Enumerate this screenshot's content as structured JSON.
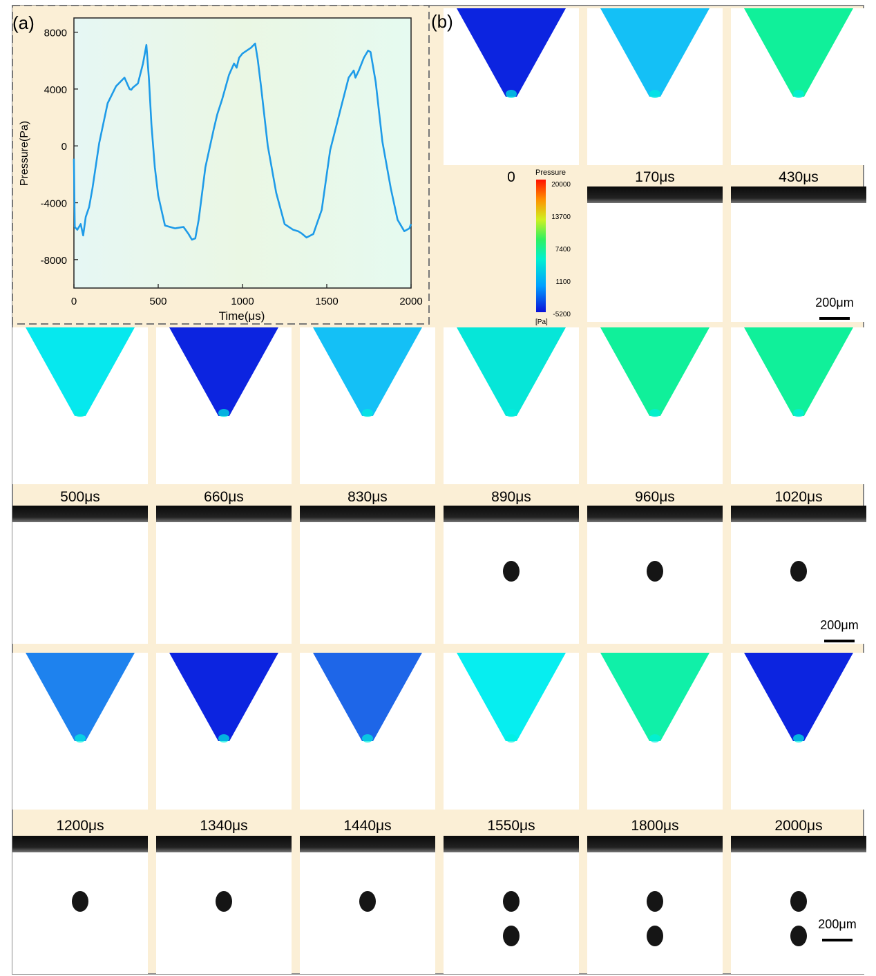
{
  "panel_a": {
    "label": "(a)",
    "chart_data": {
      "type": "line",
      "title": "",
      "xlabel": "Time(μs)",
      "ylabel": "Pressure(Pa)",
      "xlim": [
        0,
        2000
      ],
      "ylim": [
        -10000,
        9000
      ],
      "xticks": [
        0,
        500,
        1000,
        1500,
        2000
      ],
      "yticks": [
        -8000,
        -4000,
        0,
        4000,
        8000
      ],
      "grid": false,
      "legend": "none",
      "line_color": "#1e9be8",
      "series": [
        {
          "x": [
            0,
            5,
            20,
            40,
            55,
            70,
            90,
            110,
            150,
            200,
            250,
            300,
            330,
            340,
            350,
            380,
            410,
            430,
            445,
            460,
            480,
            500,
            540,
            600,
            650,
            680,
            700,
            720,
            740,
            780,
            830,
            850,
            880,
            920,
            950,
            965,
            980,
            1000,
            1050,
            1075,
            1090,
            1110,
            1150,
            1200,
            1250,
            1300,
            1330,
            1350,
            1380,
            1420,
            1470,
            1520,
            1580,
            1630,
            1660,
            1670,
            1690,
            1720,
            1745,
            1760,
            1790,
            1830,
            1880,
            1920,
            1960,
            1990,
            2000
          ],
          "y": [
            -900,
            -5700,
            -5900,
            -5500,
            -6300,
            -5000,
            -4300,
            -3000,
            200,
            3000,
            4200,
            4800,
            4000,
            3950,
            4100,
            4400,
            5800,
            7100,
            4700,
            1500,
            -1500,
            -3500,
            -5600,
            -5800,
            -5700,
            -6200,
            -6600,
            -6500,
            -5200,
            -1500,
            1200,
            2200,
            3300,
            5000,
            5800,
            5500,
            6200,
            6500,
            6900,
            7200,
            6100,
            4200,
            0,
            -3300,
            -5500,
            -5900,
            -6000,
            -6150,
            -6450,
            -6200,
            -4500,
            -300,
            2500,
            4800,
            5300,
            4800,
            5300,
            6200,
            6700,
            6600,
            4500,
            300,
            -3000,
            -5200,
            -6000,
            -5800,
            -5500
          ]
        }
      ]
    }
  },
  "panel_b": {
    "label": "(b)",
    "colorbar": {
      "title": "Pressure",
      "unit": "[Pa]",
      "ticks": [
        "20000",
        "13700",
        "7400",
        "1100",
        "-5200"
      ]
    },
    "scale_bar": "200μm",
    "frames": [
      {
        "time": "0",
        "sim_color": "#0c24e0",
        "drops": 0
      },
      {
        "time": "170μs",
        "sim_color": "#14c0f6",
        "drops": 0
      },
      {
        "time": "430μs",
        "sim_color": "#10f09a",
        "drops": 0
      },
      {
        "time": "500μs",
        "sim_color": "#06e8ee",
        "drops": 0
      },
      {
        "time": "660μs",
        "sim_color": "#0c24e0",
        "drops": 0
      },
      {
        "time": "830μs",
        "sim_color": "#14c0f6",
        "drops": 0
      },
      {
        "time": "890μs",
        "sim_color": "#06e6d8",
        "drops": 1
      },
      {
        "time": "960μs",
        "sim_color": "#10f09a",
        "drops": 1
      },
      {
        "time": "1020μs",
        "sim_color": "#10f09a",
        "drops": 1
      },
      {
        "time": "1200μs",
        "sim_color": "#1e82ee",
        "drops": 1
      },
      {
        "time": "1340μs",
        "sim_color": "#0c24e0",
        "drops": 1
      },
      {
        "time": "1440μs",
        "sim_color": "#1e66e8",
        "drops": 1
      },
      {
        "time": "1550μs",
        "sim_color": "#06eef0",
        "drops": 2
      },
      {
        "time": "1800μs",
        "sim_color": "#10f0a8",
        "drops": 2
      },
      {
        "time": "2000μs",
        "sim_color": "#0c24e0",
        "drops": 2
      }
    ]
  }
}
